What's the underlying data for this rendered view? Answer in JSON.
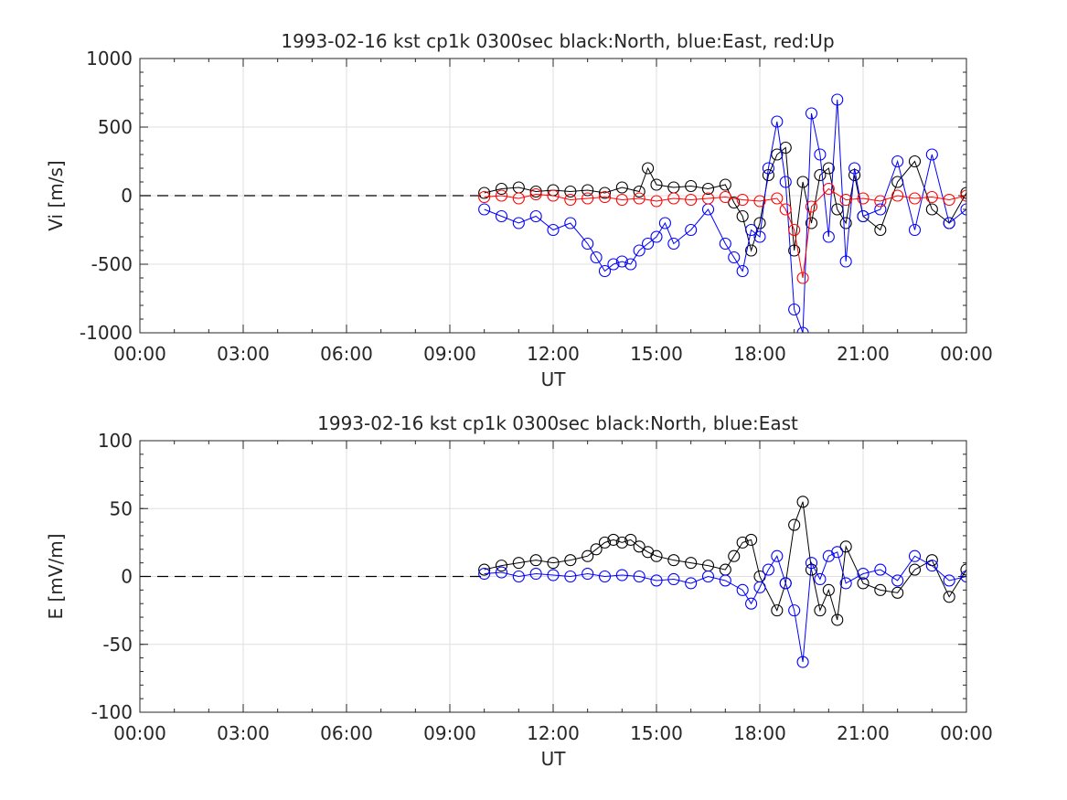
{
  "chart_data": [
    {
      "type": "scatter",
      "title": "1993-02-16 kst cp1k 0300sec black:North, blue:East, red:Up",
      "xlabel": "UT",
      "ylabel": "Vi [m/s]",
      "xlim": [
        "00:00",
        "24:00"
      ],
      "ylim": [
        -1000,
        1000
      ],
      "xticks": [
        "00:00",
        "03:00",
        "06:00",
        "09:00",
        "12:00",
        "15:00",
        "18:00",
        "21:00",
        "00:00"
      ],
      "yticks": [
        "1000",
        "500",
        "0",
        "-500",
        "-1000"
      ],
      "grid": true,
      "reference_line": {
        "y": 0,
        "style": "dashed",
        "color": "#000000"
      },
      "series": [
        {
          "name": "North",
          "color": "#000000",
          "x": [
            10.0,
            10.5,
            11.0,
            11.5,
            12.0,
            12.5,
            13.0,
            13.5,
            14.0,
            14.5,
            14.75,
            15.0,
            15.5,
            16.0,
            16.5,
            17.0,
            17.25,
            17.5,
            17.75,
            18.0,
            18.25,
            18.5,
            18.75,
            19.0,
            19.25,
            19.5,
            19.75,
            20.0,
            20.25,
            20.5,
            20.75,
            21.0,
            21.5,
            22.0,
            22.5,
            23.0,
            23.5,
            24.0
          ],
          "y": [
            20,
            50,
            60,
            30,
            40,
            30,
            40,
            20,
            60,
            30,
            200,
            80,
            60,
            70,
            50,
            80,
            -50,
            -150,
            -400,
            -200,
            150,
            300,
            350,
            -400,
            100,
            -200,
            150,
            200,
            -100,
            -200,
            150,
            -150,
            -250,
            100,
            250,
            -100,
            -200,
            20
          ]
        },
        {
          "name": "East",
          "color": "#0000ff",
          "x": [
            10.0,
            10.5,
            11.0,
            11.5,
            12.0,
            12.5,
            13.0,
            13.25,
            13.5,
            13.75,
            14.0,
            14.25,
            14.5,
            14.75,
            15.0,
            15.25,
            15.5,
            16.0,
            16.5,
            17.0,
            17.25,
            17.5,
            17.75,
            18.0,
            18.25,
            18.5,
            18.75,
            19.0,
            19.25,
            19.5,
            19.75,
            20.0,
            20.25,
            20.5,
            20.75,
            21.0,
            21.5,
            22.0,
            22.5,
            23.0,
            23.5,
            24.0
          ],
          "y": [
            -100,
            -150,
            -200,
            -150,
            -250,
            -200,
            -350,
            -450,
            -550,
            -500,
            -480,
            -500,
            -400,
            -350,
            -300,
            -200,
            -350,
            -250,
            -100,
            -350,
            -450,
            -550,
            -250,
            -300,
            200,
            540,
            100,
            -830,
            -1000,
            600,
            300,
            -300,
            700,
            -480,
            200,
            -150,
            -100,
            250,
            -250,
            300,
            -200,
            -100
          ]
        },
        {
          "name": "Up",
          "color": "#ff0000",
          "x": [
            10.0,
            10.5,
            11.0,
            11.5,
            12.0,
            12.5,
            13.0,
            13.5,
            14.0,
            14.5,
            15.0,
            15.5,
            16.0,
            16.5,
            17.0,
            17.5,
            18.0,
            18.5,
            18.75,
            19.0,
            19.25,
            19.5,
            20.0,
            20.5,
            21.0,
            21.5,
            22.0,
            22.5,
            23.0,
            23.5,
            24.0
          ],
          "y": [
            -10,
            0,
            -20,
            10,
            0,
            -30,
            -20,
            -10,
            -30,
            -20,
            -40,
            -20,
            -30,
            -20,
            -10,
            -30,
            -40,
            -20,
            -100,
            -250,
            -600,
            -80,
            50,
            -30,
            -20,
            -40,
            0,
            -20,
            -10,
            -30,
            0
          ]
        }
      ]
    },
    {
      "type": "scatter",
      "title": "1993-02-16 kst cp1k 0300sec black:North, blue:East",
      "xlabel": "UT",
      "ylabel": "E [mV/m]",
      "xlim": [
        "00:00",
        "24:00"
      ],
      "ylim": [
        -100,
        100
      ],
      "xticks": [
        "00:00",
        "03:00",
        "06:00",
        "09:00",
        "12:00",
        "15:00",
        "18:00",
        "21:00",
        "00:00"
      ],
      "yticks": [
        "100",
        "50",
        "0",
        "-50",
        "-100"
      ],
      "grid": true,
      "reference_line": {
        "y": 0,
        "style": "dashed",
        "color": "#000000"
      },
      "series": [
        {
          "name": "North",
          "color": "#000000",
          "x": [
            10.0,
            10.5,
            11.0,
            11.5,
            12.0,
            12.5,
            13.0,
            13.25,
            13.5,
            13.75,
            14.0,
            14.25,
            14.5,
            14.75,
            15.0,
            15.5,
            16.0,
            16.5,
            17.0,
            17.25,
            17.5,
            17.75,
            18.0,
            18.5,
            18.75,
            19.0,
            19.25,
            19.5,
            19.75,
            20.0,
            20.25,
            20.5,
            21.0,
            21.5,
            22.0,
            22.5,
            23.0,
            23.5,
            24.0
          ],
          "y": [
            5,
            8,
            10,
            12,
            10,
            12,
            15,
            20,
            25,
            27,
            25,
            27,
            22,
            18,
            15,
            12,
            10,
            8,
            5,
            15,
            25,
            27,
            0,
            -25,
            -5,
            38,
            55,
            5,
            -25,
            -10,
            -32,
            22,
            -5,
            -10,
            -12,
            5,
            12,
            -15,
            5
          ]
        },
        {
          "name": "East",
          "color": "#0000ff",
          "x": [
            10.0,
            10.5,
            11.0,
            11.5,
            12.0,
            12.5,
            13.0,
            13.5,
            14.0,
            14.5,
            15.0,
            15.5,
            16.0,
            16.5,
            17.0,
            17.5,
            17.75,
            18.0,
            18.25,
            18.5,
            18.75,
            19.0,
            19.25,
            19.5,
            19.75,
            20.0,
            20.25,
            20.5,
            21.0,
            21.5,
            22.0,
            22.5,
            23.0,
            23.5,
            24.0
          ],
          "y": [
            2,
            3,
            0,
            2,
            1,
            0,
            2,
            0,
            1,
            0,
            -3,
            -2,
            -5,
            0,
            -3,
            -10,
            -20,
            -8,
            5,
            15,
            -5,
            -25,
            -63,
            10,
            -2,
            15,
            18,
            -5,
            2,
            5,
            -3,
            15,
            8,
            -3,
            0
          ]
        }
      ]
    }
  ]
}
